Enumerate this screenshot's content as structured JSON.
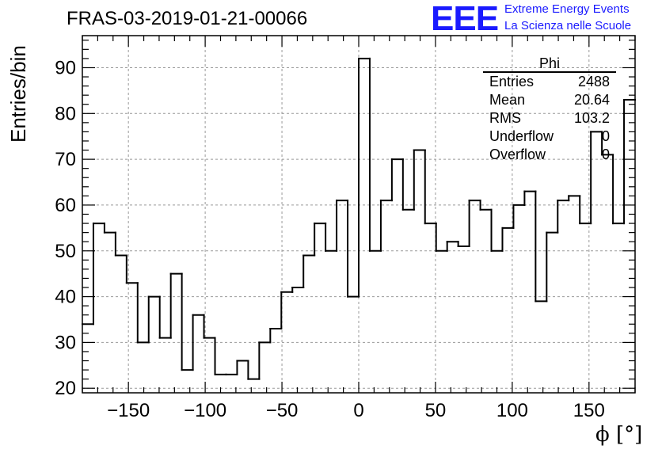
{
  "header": {
    "title": "FRAS-03-2019-01-21-00066",
    "logo_text": "EEE",
    "logo_line1": "Extreme Energy Events",
    "logo_line2": "La Scienza nelle Scuole"
  },
  "stats": {
    "name": "Phi",
    "rows": [
      {
        "key": "Entries",
        "value": "2488"
      },
      {
        "key": "Mean",
        "value": "20.64"
      },
      {
        "key": "RMS",
        "value": "103.2"
      },
      {
        "key": "Underflow",
        "value": "0"
      },
      {
        "key": "Overflow",
        "value": "0"
      }
    ]
  },
  "chart_data": {
    "type": "histogram",
    "title": "FRAS-03-2019-01-21-00066",
    "xlabel": "ϕ [°]",
    "ylabel": "Entries/bin",
    "xlim": [
      -180,
      180
    ],
    "ylim": [
      19,
      97
    ],
    "bin_width": 7.2,
    "bin_edges_start": -180,
    "values": [
      34,
      56,
      54,
      49,
      43,
      30,
      40,
      31,
      45,
      24,
      36,
      31,
      23,
      23,
      26,
      22,
      30,
      33,
      41,
      42,
      49,
      56,
      50,
      61,
      40,
      92,
      50,
      61,
      70,
      59,
      72,
      56,
      50,
      52,
      51,
      61,
      59,
      50,
      55,
      60,
      63,
      39,
      54,
      61,
      62,
      56,
      76,
      71,
      56,
      83
    ],
    "x_ticks": [
      -150,
      -100,
      -50,
      0,
      50,
      100,
      150
    ],
    "x_tick_labels": [
      "−150",
      "−100",
      "−50",
      "0",
      "50",
      "100",
      "150"
    ],
    "y_ticks": [
      20,
      30,
      40,
      50,
      60,
      70,
      80,
      90
    ],
    "y_tick_labels": [
      "20",
      "30",
      "40",
      "50",
      "60",
      "70",
      "80",
      "90"
    ],
    "grid": true,
    "line_color": "#000000",
    "grid_color": "#999999"
  }
}
